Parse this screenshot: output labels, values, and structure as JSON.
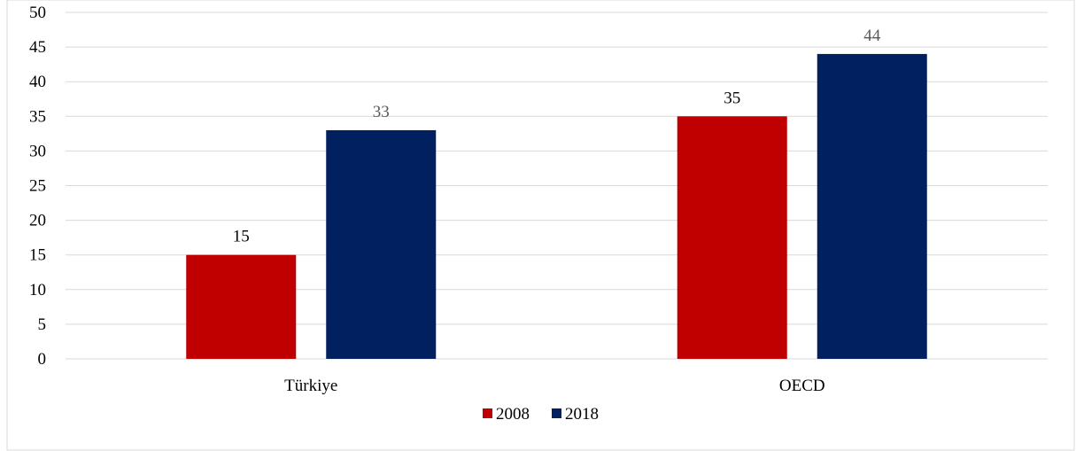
{
  "chart_data": {
    "type": "bar",
    "categories": [
      "Türkiye",
      "OECD"
    ],
    "series": [
      {
        "name": "2008",
        "values": [
          15,
          35
        ],
        "color": "#c00000"
      },
      {
        "name": "2018",
        "values": [
          33,
          44
        ],
        "color": "#002060"
      }
    ],
    "data_label_colors": [
      "#000000",
      "#595959"
    ],
    "ylim": [
      0,
      50
    ],
    "yticks": [
      0,
      5,
      10,
      15,
      20,
      25,
      30,
      35,
      40,
      45,
      50
    ],
    "grid": true,
    "legend_position": "bottom",
    "title": "",
    "xlabel": "",
    "ylabel": ""
  }
}
